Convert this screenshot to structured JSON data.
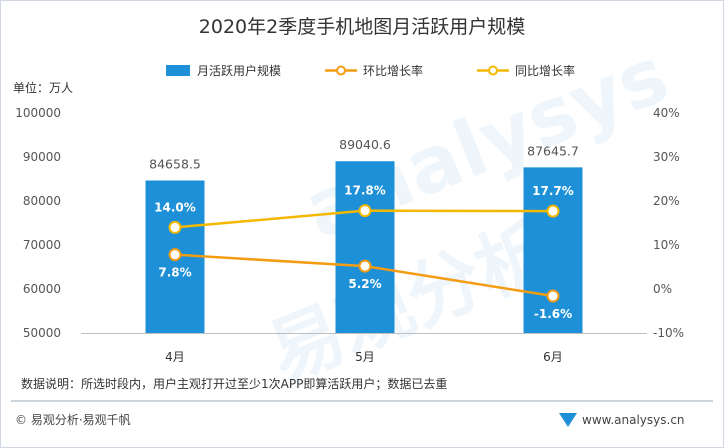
{
  "chart_data": {
    "type": "bar",
    "title": "2020年2季度手机地图月活跃用户规模",
    "unit_label": "单位：万人",
    "categories": [
      "4月",
      "5月",
      "6月"
    ],
    "y_left": {
      "min": 50000,
      "max": 100000,
      "step": 10000,
      "ticks": [
        "50000",
        "60000",
        "70000",
        "80000",
        "90000",
        "100000"
      ]
    },
    "y_right": {
      "min": -10,
      "max": 40,
      "step": 10,
      "ticks": [
        "-10%",
        "0%",
        "10%",
        "20%",
        "30%",
        "40%"
      ]
    },
    "series": [
      {
        "name": "月活跃用户规模",
        "kind": "bar",
        "axis": "left",
        "color": "#1e90d8",
        "values": [
          84658.5,
          89040.6,
          87645.7
        ],
        "labels": [
          "84658.5",
          "89040.6",
          "87645.7"
        ]
      },
      {
        "name": "环比增长率",
        "kind": "line",
        "axis": "right",
        "color": "#f39c12",
        "values": [
          7.8,
          5.2,
          -1.6
        ],
        "labels": [
          "7.8%",
          "5.2%",
          "-1.6%"
        ]
      },
      {
        "name": "同比增长率",
        "kind": "line",
        "axis": "right",
        "color": "#f5b800",
        "values": [
          14.0,
          17.8,
          17.7
        ],
        "labels": [
          "14.0%",
          "17.8%",
          "17.7%"
        ]
      }
    ],
    "legend_position": "top",
    "grid": false
  },
  "note": "数据说明：所选时段内，用户主观打开过至少1次APP即算活跃用户；数据已去重",
  "footer_left": "© 易观分析·易观千帆",
  "footer_right": "www.analysys.cn",
  "watermark": {
    "top": "analysys",
    "bottom": "易观分析"
  }
}
